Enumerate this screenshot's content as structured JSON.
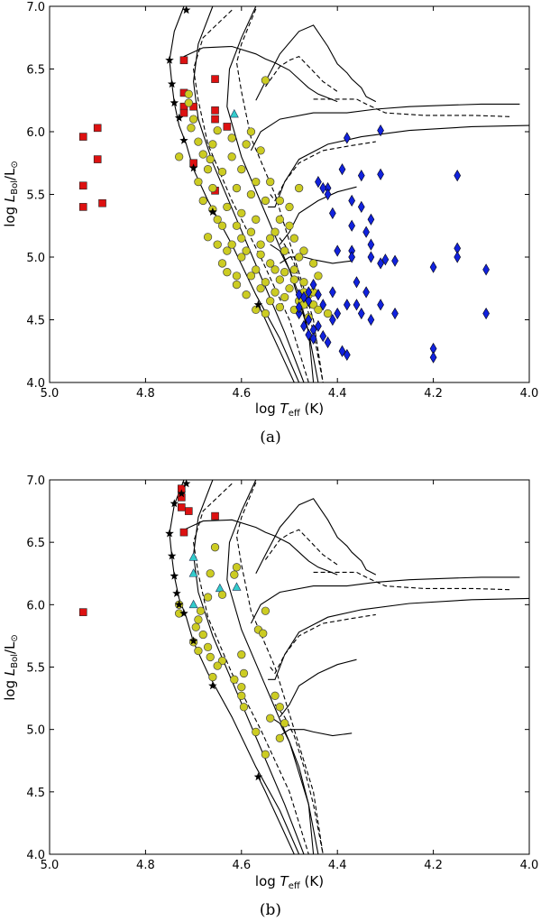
{
  "chart_data": [
    {
      "type": "scatter",
      "panel_label": "(a)",
      "xlabel": "log T_eff (K)",
      "ylabel": "log L_Bol/L_⊙",
      "xlim": [
        5.0,
        4.0
      ],
      "ylim": [
        4.0,
        7.0
      ],
      "xticks": [
        "5.0",
        "4.8",
        "4.6",
        "4.4",
        "4.2",
        "4.0"
      ],
      "yticks": [
        "4.0",
        "4.5",
        "5.0",
        "5.5",
        "6.0",
        "6.5",
        "7.0"
      ],
      "grid": false,
      "series": [
        {
          "marker": "square",
          "color": "#dd1111",
          "points": [
            [
              4.93,
              5.96
            ],
            [
              4.9,
              6.03
            ],
            [
              4.9,
              5.78
            ],
            [
              4.93,
              5.57
            ],
            [
              4.93,
              5.4
            ],
            [
              4.89,
              5.43
            ],
            [
              4.72,
              6.57
            ],
            [
              4.72,
              6.31
            ],
            [
              4.72,
              6.2
            ],
            [
              4.72,
              6.15
            ],
            [
              4.7,
              6.2
            ],
            [
              4.655,
              6.42
            ],
            [
              4.655,
              6.17
            ],
            [
              4.655,
              6.1
            ],
            [
              4.655,
              5.53
            ],
            [
              4.63,
              6.04
            ],
            [
              4.7,
              5.75
            ]
          ]
        },
        {
          "marker": "triangle",
          "color": "#33cccc",
          "points": [
            [
              4.615,
              6.14
            ]
          ]
        },
        {
          "marker": "circle",
          "color": "#cccc22",
          "points": [
            [
              4.65,
              6.01
            ],
            [
              4.66,
              5.9
            ],
            [
              4.665,
              5.78
            ],
            [
              4.64,
              5.68
            ],
            [
              4.62,
              5.8
            ],
            [
              4.61,
              5.55
            ],
            [
              4.6,
              5.35
            ],
            [
              4.63,
              5.4
            ],
            [
              4.65,
              5.3
            ],
            [
              4.67,
              5.16
            ],
            [
              4.58,
              5.2
            ],
            [
              4.56,
              5.1
            ],
            [
              4.54,
              4.95
            ],
            [
              4.52,
              4.82
            ],
            [
              4.5,
              4.75
            ],
            [
              4.48,
              4.65
            ],
            [
              4.6,
              5.0
            ],
            [
              4.58,
              4.85
            ],
            [
              4.56,
              4.75
            ],
            [
              4.54,
              4.65
            ],
            [
              4.52,
              4.6
            ],
            [
              4.55,
              5.45
            ],
            [
              4.57,
              5.6
            ],
            [
              4.59,
              5.9
            ],
            [
              4.55,
              6.41
            ],
            [
              4.53,
              5.2
            ],
            [
              4.51,
              5.05
            ],
            [
              4.49,
              4.9
            ],
            [
              4.47,
              4.8
            ],
            [
              4.46,
              4.7
            ],
            [
              4.62,
              5.1
            ],
            [
              4.64,
              4.95
            ],
            [
              4.61,
              4.85
            ],
            [
              4.59,
              4.7
            ],
            [
              4.57,
              4.58
            ],
            [
              4.55,
              4.55
            ],
            [
              4.52,
              5.3
            ],
            [
              4.5,
              5.4
            ],
            [
              4.48,
              5.55
            ],
            [
              4.49,
              5.15
            ],
            [
              4.47,
              5.05
            ],
            [
              4.45,
              4.95
            ],
            [
              4.44,
              4.85
            ],
            [
              4.6,
              5.7
            ],
            [
              4.62,
              5.95
            ],
            [
              4.68,
              5.82
            ],
            [
              4.73,
              5.8
            ],
            [
              4.705,
              6.03
            ],
            [
              4.69,
              5.6
            ],
            [
              4.68,
              5.45
            ],
            [
              4.66,
              5.38
            ],
            [
              4.64,
              5.25
            ],
            [
              4.57,
              5.3
            ],
            [
              4.56,
              5.02
            ],
            [
              4.53,
              4.9
            ],
            [
              4.51,
              4.68
            ],
            [
              4.49,
              4.58
            ],
            [
              4.47,
              4.62
            ],
            [
              4.45,
              4.72
            ],
            [
              4.46,
              4.52
            ],
            [
              4.58,
              5.5
            ],
            [
              4.6,
              5.15
            ],
            [
              4.63,
              5.05
            ],
            [
              4.54,
              5.15
            ],
            [
              4.52,
              5.45
            ],
            [
              4.5,
              5.25
            ],
            [
              4.48,
              5.0
            ],
            [
              4.55,
              4.8
            ],
            [
              4.57,
              4.9
            ],
            [
              4.59,
              5.05
            ],
            [
              4.61,
              5.25
            ],
            [
              4.54,
              5.6
            ],
            [
              4.58,
              6.0
            ],
            [
              4.56,
              5.85
            ],
            [
              4.7,
              6.1
            ],
            [
              4.71,
              6.23
            ],
            [
              4.71,
              6.3
            ],
            [
              4.69,
              5.92
            ],
            [
              4.67,
              5.7
            ],
            [
              4.66,
              5.55
            ],
            [
              4.65,
              5.1
            ],
            [
              4.63,
              4.88
            ],
            [
              4.61,
              4.78
            ],
            [
              4.53,
              4.72
            ],
            [
              4.51,
              4.88
            ],
            [
              4.49,
              4.82
            ],
            [
              4.47,
              4.72
            ],
            [
              4.45,
              4.62
            ],
            [
              4.44,
              4.58
            ],
            [
              4.42,
              4.55
            ]
          ]
        },
        {
          "marker": "diamond",
          "color": "#1122dd",
          "points": [
            [
              4.38,
              5.95
            ],
            [
              4.31,
              6.01
            ],
            [
              4.39,
              5.7
            ],
            [
              4.35,
              5.65
            ],
            [
              4.31,
              5.66
            ],
            [
              4.42,
              5.55
            ],
            [
              4.41,
              5.35
            ],
            [
              4.37,
              5.45
            ],
            [
              4.33,
              5.3
            ],
            [
              4.37,
              5.25
            ],
            [
              4.35,
              5.4
            ],
            [
              4.34,
              5.2
            ],
            [
              4.37,
              5.05
            ],
            [
              4.33,
              5.0
            ],
            [
              4.31,
              4.95
            ],
            [
              4.3,
              4.98
            ],
            [
              4.28,
              4.97
            ],
            [
              4.36,
              4.8
            ],
            [
              4.34,
              4.72
            ],
            [
              4.36,
              4.62
            ],
            [
              4.35,
              4.55
            ],
            [
              4.33,
              4.5
            ],
            [
              4.38,
              4.62
            ],
            [
              4.4,
              4.55
            ],
            [
              4.41,
              4.5
            ],
            [
              4.44,
              4.45
            ],
            [
              4.45,
              4.42
            ],
            [
              4.46,
              4.38
            ],
            [
              4.43,
              4.37
            ],
            [
              4.42,
              4.32
            ],
            [
              4.39,
              4.25
            ],
            [
              4.38,
              4.22
            ],
            [
              4.41,
              4.72
            ],
            [
              4.43,
              4.62
            ],
            [
              4.45,
              4.78
            ],
            [
              4.44,
              4.7
            ],
            [
              4.46,
              4.65
            ],
            [
              4.47,
              4.68
            ],
            [
              4.48,
              4.55
            ],
            [
              4.44,
              5.6
            ],
            [
              4.43,
              5.55
            ],
            [
              4.42,
              5.5
            ],
            [
              4.37,
              5.0
            ],
            [
              4.33,
              5.1
            ],
            [
              4.4,
              5.05
            ],
            [
              4.31,
              4.62
            ],
            [
              4.28,
              4.55
            ],
            [
              4.2,
              4.92
            ],
            [
              4.15,
              5.07
            ],
            [
              4.15,
              5.0
            ],
            [
              4.15,
              5.65
            ],
            [
              4.09,
              4.9
            ],
            [
              4.09,
              4.55
            ],
            [
              4.2,
              4.27
            ],
            [
              4.2,
              4.2
            ],
            [
              4.47,
              4.45
            ],
            [
              4.46,
              4.5
            ],
            [
              4.46,
              4.72
            ],
            [
              4.45,
              4.35
            ],
            [
              4.48,
              4.7
            ],
            [
              4.48,
              4.6
            ]
          ]
        },
        {
          "marker": "star",
          "color": "#000000",
          "points": [
            [
              4.715,
              6.97
            ],
            [
              4.75,
              6.57
            ],
            [
              4.745,
              6.38
            ],
            [
              4.74,
              6.23
            ],
            [
              4.73,
              6.11
            ],
            [
              4.72,
              5.93
            ],
            [
              4.7,
              5.71
            ],
            [
              4.66,
              5.36
            ],
            [
              4.565,
              4.62
            ]
          ]
        }
      ]
    },
    {
      "type": "scatter",
      "panel_label": "(b)",
      "xlabel": "log T_eff (K)",
      "ylabel": "log L_Bol/L_⊙",
      "xlim": [
        5.0,
        4.0
      ],
      "ylim": [
        4.0,
        7.0
      ],
      "xticks": [
        "5.0",
        "4.8",
        "4.6",
        "4.4",
        "4.2",
        "4.0"
      ],
      "yticks": [
        "4.0",
        "4.5",
        "5.0",
        "5.5",
        "6.0",
        "6.5",
        "7.0"
      ],
      "grid": false,
      "series": [
        {
          "marker": "square",
          "color": "#dd1111",
          "points": [
            [
              4.93,
              5.94
            ],
            [
              4.725,
              6.93
            ],
            [
              4.725,
              6.86
            ],
            [
              4.725,
              6.78
            ],
            [
              4.71,
              6.75
            ],
            [
              4.72,
              6.58
            ],
            [
              4.655,
              6.71
            ]
          ]
        },
        {
          "marker": "triangle",
          "color": "#33cccc",
          "points": [
            [
              4.7,
              6.38
            ],
            [
              4.7,
              6.25
            ],
            [
              4.645,
              6.13
            ],
            [
              4.61,
              6.14
            ],
            [
              4.7,
              6.0
            ]
          ]
        },
        {
          "marker": "circle",
          "color": "#cccc22",
          "points": [
            [
              4.655,
              6.46
            ],
            [
              4.665,
              6.25
            ],
            [
              4.61,
              6.3
            ],
            [
              4.615,
              6.24
            ],
            [
              4.67,
              6.06
            ],
            [
              4.64,
              6.08
            ],
            [
              4.685,
              5.95
            ],
            [
              4.69,
              5.88
            ],
            [
              4.695,
              5.82
            ],
            [
              4.68,
              5.76
            ],
            [
              4.7,
              5.7
            ],
            [
              4.67,
              5.66
            ],
            [
              4.665,
              5.58
            ],
            [
              4.64,
              5.55
            ],
            [
              4.65,
              5.51
            ],
            [
              4.66,
              5.42
            ],
            [
              4.69,
              5.63
            ],
            [
              4.73,
              6.0
            ],
            [
              4.73,
              5.93
            ],
            [
              4.55,
              5.95
            ],
            [
              4.565,
              5.8
            ],
            [
              4.555,
              5.77
            ],
            [
              4.6,
              5.6
            ],
            [
              4.615,
              5.4
            ],
            [
              4.6,
              5.27
            ],
            [
              4.595,
              5.18
            ],
            [
              4.53,
              5.27
            ],
            [
              4.52,
              5.18
            ],
            [
              4.54,
              5.09
            ],
            [
              4.51,
              5.05
            ],
            [
              4.52,
              4.93
            ],
            [
              4.57,
              4.98
            ],
            [
              4.55,
              4.8
            ],
            [
              4.595,
              5.45
            ],
            [
              4.6,
              5.34
            ]
          ]
        },
        {
          "marker": "star",
          "color": "#000000",
          "points": [
            [
              4.715,
              6.97
            ],
            [
              4.725,
              6.89
            ],
            [
              4.74,
              6.81
            ],
            [
              4.75,
              6.57
            ],
            [
              4.745,
              6.39
            ],
            [
              4.74,
              6.23
            ],
            [
              4.735,
              6.09
            ],
            [
              4.73,
              6.0
            ],
            [
              4.72,
              5.93
            ],
            [
              4.7,
              5.71
            ],
            [
              4.66,
              5.35
            ],
            [
              4.565,
              4.62
            ]
          ]
        }
      ]
    }
  ],
  "panel_a": {
    "caption": "(a)",
    "xlabel_main": "log ",
    "xlabel_var": "T",
    "xlabel_sub": "eff",
    "xlabel_unit": " (K)",
    "ylabel_main": "log ",
    "ylabel_var": "L",
    "ylabel_sub": "Bol",
    "ylabel_unit": "/L",
    "ylabel_sun": "⊙"
  },
  "panel_b": {
    "caption": "(b)",
    "xlabel_main": "log ",
    "xlabel_var": "T",
    "xlabel_sub": "eff",
    "xlabel_unit": " (K)",
    "ylabel_main": "log ",
    "ylabel_var": "L",
    "ylabel_sub": "Bol",
    "ylabel_unit": "/L",
    "ylabel_sun": "⊙"
  }
}
